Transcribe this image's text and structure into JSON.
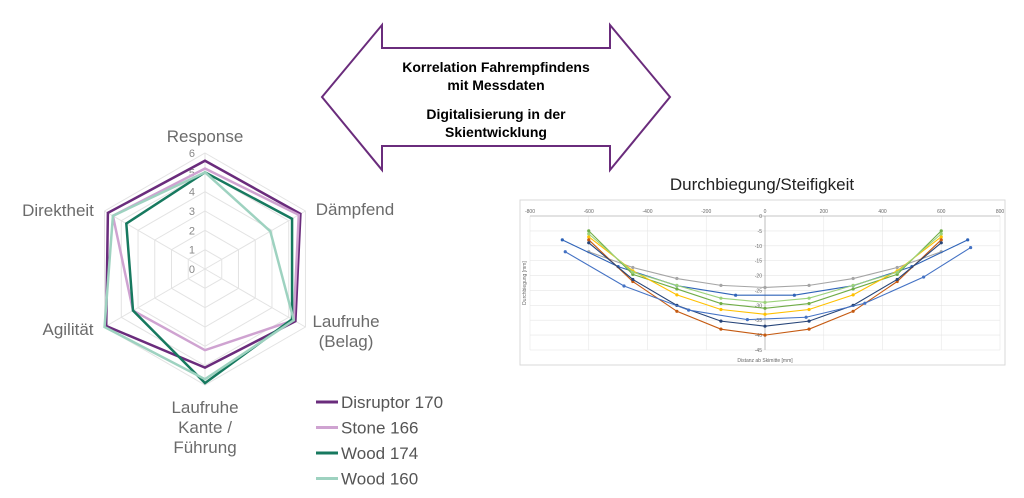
{
  "chart_data": [
    {
      "type": "radar",
      "categories": [
        "Response",
        "Dämpfend",
        "Laufruhe (Belag)",
        "Laufruhe Kante / Führung",
        "Agilität",
        "Direktheit"
      ],
      "rlim": [
        0,
        6
      ],
      "rticks": [
        0,
        1,
        2,
        3,
        4,
        5,
        6
      ],
      "grid": true,
      "legend": "bottom",
      "series": [
        {
          "name": "Disruptor 170",
          "color": "#6a2c7c",
          "values": [
            5.6,
            5.7,
            5.4,
            5.1,
            5.9,
            5.8
          ]
        },
        {
          "name": "Stone 166",
          "color": "#cfa3d1",
          "values": [
            5.2,
            5.6,
            5.3,
            4.2,
            4.3,
            5.5
          ]
        },
        {
          "name": "Wood 174",
          "color": "#17795f",
          "values": [
            5.0,
            5.2,
            5.2,
            5.9,
            4.3,
            4.7
          ]
        },
        {
          "name": "Wood 160",
          "color": "#9ed2c0",
          "values": [
            5.0,
            3.9,
            5.3,
            5.7,
            6.0,
            5.5
          ]
        }
      ]
    },
    {
      "type": "line",
      "title": "Durchbiegung/Steifigkeit",
      "xlabel": "Distanz ab Skimitte [mm]",
      "ylabel": "Durchbiegung [mm]",
      "xlim": [
        -800,
        800
      ],
      "xticks": [
        -800,
        -600,
        -400,
        -200,
        0,
        200,
        400,
        600,
        800
      ],
      "ylim": [
        -45,
        0
      ],
      "yticks": [
        -45,
        -40,
        -35,
        -30,
        -25,
        -20,
        -15,
        -10,
        -5,
        0
      ],
      "grid": true,
      "series": [
        {
          "color": "#a5a5a5",
          "x": [
            -600,
            -450,
            -300,
            -150,
            0,
            150,
            300,
            450,
            600
          ],
          "values": [
            -12,
            -17.3,
            -21,
            -23.3,
            -24,
            -23.3,
            -21,
            -17.3,
            -12
          ]
        },
        {
          "color": "#2e63b8",
          "x": [
            -690,
            -500,
            -300,
            -100,
            100,
            300,
            500,
            690
          ],
          "values": [
            -8,
            -17,
            -23.4,
            -26.6,
            -26.6,
            -23.4,
            -17,
            -8
          ]
        },
        {
          "color": "#70ad47",
          "x": [
            -600,
            -450,
            -300,
            -150,
            0,
            150,
            300,
            450,
            600
          ],
          "values": [
            -5,
            -19.6,
            -24.5,
            -29.4,
            -31,
            -29.4,
            -24.5,
            -19.6,
            -5
          ]
        },
        {
          "color": "#ffc000",
          "x": [
            -600,
            -450,
            -300,
            -150,
            0,
            150,
            300,
            450,
            600
          ],
          "values": [
            -7,
            -18.4,
            -26.5,
            -31.4,
            -33,
            -31.4,
            -26.5,
            -18.4,
            -7
          ]
        },
        {
          "color": "#c55a11",
          "x": [
            -600,
            -450,
            -300,
            -150,
            0,
            150,
            300,
            450,
            600
          ],
          "values": [
            -8,
            -22,
            -32,
            -38,
            -40,
            -38,
            -32,
            -22,
            -8
          ]
        },
        {
          "color": "#264478",
          "x": [
            -600,
            -450,
            -300,
            -150,
            0,
            150,
            300,
            450,
            600
          ],
          "values": [
            -9,
            -21.3,
            -30,
            -35.3,
            -37,
            -35.3,
            -30,
            -21.3,
            -9
          ]
        },
        {
          "color": "#9bd27a",
          "x": [
            -600,
            -450,
            -300,
            -150,
            0,
            150,
            300,
            450,
            600
          ],
          "values": [
            -6,
            -18.9,
            -23.3,
            -27.6,
            -29,
            -27.6,
            -23.3,
            -18.9,
            -6
          ]
        },
        {
          "color": "#4472c4",
          "x": [
            -680,
            -480,
            -260,
            -60,
            140,
            340,
            540,
            700
          ],
          "values": [
            -12,
            -23.5,
            -31.6,
            -34.8,
            -34,
            -29.3,
            -20.5,
            -10.6
          ]
        }
      ]
    }
  ],
  "arrow": {
    "texts": [
      "Korrelation Fahrempfindens mit Messdaten",
      "Digitalisierung in der Skientwicklung"
    ]
  }
}
